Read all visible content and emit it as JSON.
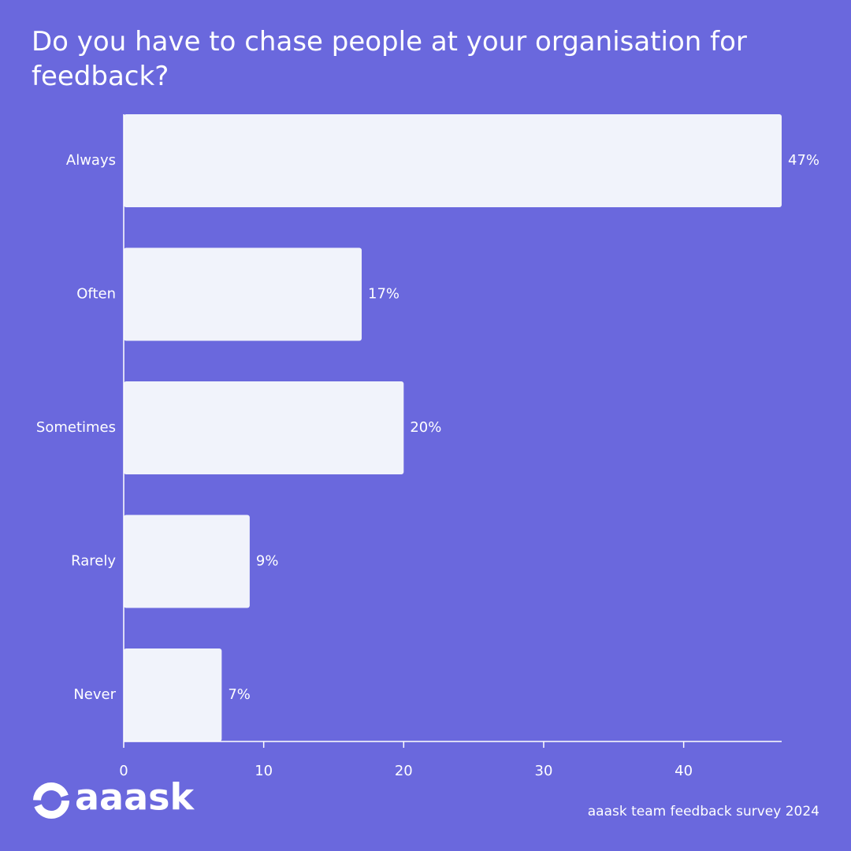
{
  "chart_data": {
    "type": "bar",
    "orientation": "horizontal",
    "title": "Do you have to chase people at your organisation for feedback?",
    "categories": [
      "Always",
      "Often",
      "Sometimes",
      "Rarely",
      "Never"
    ],
    "values": [
      47,
      17,
      20,
      9,
      7
    ],
    "value_labels": [
      "47%",
      "17%",
      "20%",
      "9%",
      "7%"
    ],
    "color": "#f1f3fb",
    "xlim": [
      0,
      47
    ],
    "xticks": [
      0,
      10,
      20,
      30,
      40
    ],
    "logo": "aaask",
    "footer": "aaask team feedback survey 2024"
  }
}
